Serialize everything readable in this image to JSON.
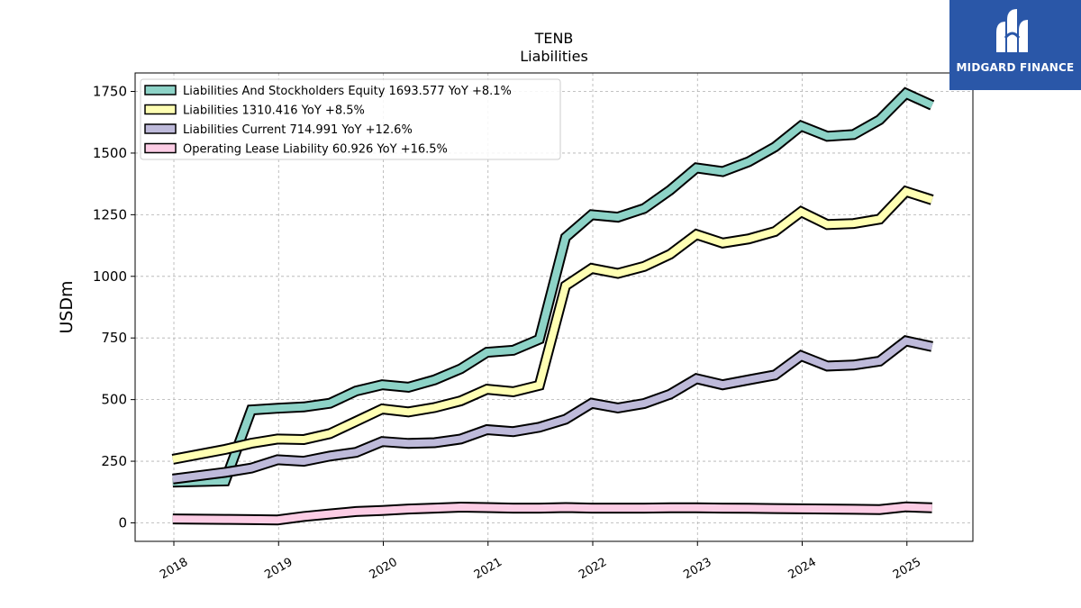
{
  "logo": {
    "text": "MIDGARD FINANCE",
    "background": "#2a57a8"
  },
  "chart_data": {
    "type": "line",
    "title": "TENB",
    "subtitle": "Liabilities",
    "xlabel": "",
    "ylabel": "USDm",
    "xlim": [
      2017.63,
      2025.63
    ],
    "ylim": [
      -75,
      1825
    ],
    "yticks": [
      0,
      250,
      500,
      750,
      1000,
      1250,
      1500,
      1750
    ],
    "xticks": [
      "2018",
      "2019",
      "2020",
      "2021",
      "2022",
      "2023",
      "2024",
      "2025"
    ],
    "grid": true,
    "legend_position": "top-left",
    "x": [
      2017.99,
      2018.49,
      2018.74,
      2018.99,
      2019.24,
      2019.49,
      2019.74,
      2019.99,
      2020.24,
      2020.49,
      2020.74,
      2020.99,
      2021.24,
      2021.49,
      2021.74,
      2021.99,
      2022.24,
      2022.49,
      2022.74,
      2022.99,
      2023.24,
      2023.49,
      2023.74,
      2023.99,
      2024.24,
      2024.49,
      2024.74,
      2024.99,
      2025.24
    ],
    "series": [
      {
        "name": "Liabilities And Stockholders Equity",
        "legend": "Liabilities And Stockholders Equity  1693.577 YoY +8.1%",
        "color": "#8dd3c7",
        "values": [
          165,
          170,
          458,
          465,
          470,
          485,
          535,
          560,
          550,
          580,
          625,
          692,
          700,
          745,
          1158,
          1250,
          1240,
          1275,
          1350,
          1440,
          1425,
          1465,
          1525,
          1610,
          1568,
          1575,
          1635,
          1742,
          1694
        ]
      },
      {
        "name": "Liabilities",
        "legend": "Liabilities  1310.416 YoY +8.5%",
        "color": "#ffffb3",
        "values": [
          258,
          298,
          323,
          340,
          338,
          362,
          412,
          462,
          450,
          468,
          495,
          542,
          532,
          558,
          962,
          1032,
          1012,
          1040,
          1090,
          1170,
          1135,
          1152,
          1182,
          1262,
          1210,
          1214,
          1232,
          1344,
          1310
        ]
      },
      {
        "name": "Liabilities Current",
        "legend": "Liabilities Current  714.991 YoY +12.6%",
        "color": "#bebada",
        "values": [
          178,
          205,
          222,
          256,
          250,
          271,
          286,
          330,
          322,
          325,
          340,
          378,
          370,
          388,
          420,
          485,
          466,
          484,
          522,
          585,
          560,
          580,
          600,
          678,
          636,
          640,
          656,
          738,
          715
        ]
      },
      {
        "name": "Operating Lease Liability",
        "legend": "Operating Lease Liability  60.926 YoY +16.5%",
        "color": "#fccde5",
        "values": [
          16,
          14,
          13,
          12,
          26,
          36,
          46,
          50,
          56,
          60,
          64,
          62,
          60,
          60,
          62,
          60,
          60,
          60,
          61,
          61,
          60,
          59,
          58,
          57,
          56,
          55,
          54,
          65,
          61
        ]
      }
    ]
  }
}
